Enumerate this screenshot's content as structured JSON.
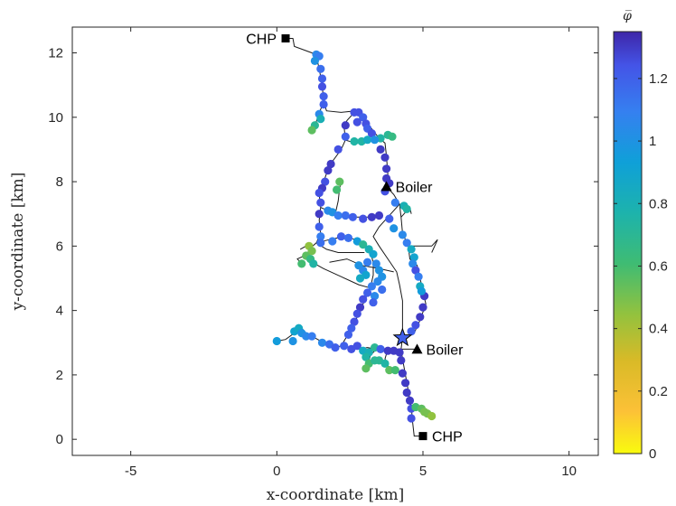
{
  "chart_data": {
    "type": "scatter",
    "title": "",
    "xlabel": "x-coordinate [km]",
    "ylabel": "y-coordinate [km]",
    "xlim": [
      -7,
      11
    ],
    "ylim": [
      -0.5,
      12.8
    ],
    "xticks": [
      -5,
      0,
      5,
      10
    ],
    "yticks": [
      0,
      2,
      4,
      6,
      8,
      10,
      12
    ],
    "grid": false,
    "colorbar": {
      "label": "φ̅",
      "range": [
        0,
        1.35
      ],
      "ticks": [
        0,
        0.2,
        0.4,
        0.6,
        0.8,
        1,
        1.2
      ],
      "colormap": "parula"
    },
    "annotations": [
      {
        "text": "CHP",
        "x": 0.3,
        "y": 12.45,
        "marker": "square"
      },
      {
        "text": "CHP",
        "x": 5.0,
        "y": 0.1,
        "marker": "square"
      },
      {
        "text": "Boiler",
        "x": 3.75,
        "y": 7.85,
        "marker": "triangle"
      },
      {
        "text": "Boiler",
        "x": 4.8,
        "y": 2.8,
        "marker": "triangle"
      }
    ],
    "star": {
      "x": 4.3,
      "y": 3.15,
      "value": 1.2
    },
    "network": [
      [
        [
          0.3,
          12.45
        ],
        [
          0.55,
          12.45
        ],
        [
          0.6,
          12.2
        ],
        [
          1.2,
          12.0
        ],
        [
          1.35,
          11.9
        ],
        [
          1.45,
          11.5
        ],
        [
          1.55,
          11.0
        ],
        [
          1.6,
          10.5
        ],
        [
          1.7,
          10.2
        ],
        [
          2.2,
          10.15
        ],
        [
          2.7,
          10.2
        ],
        [
          3.0,
          10.0
        ],
        [
          3.2,
          9.7
        ],
        [
          3.5,
          9.35
        ],
        [
          3.7,
          9.2
        ],
        [
          3.75,
          8.8
        ],
        [
          3.8,
          8.2
        ],
        [
          3.75,
          7.85
        ],
        [
          4.0,
          7.6
        ],
        [
          4.2,
          7.3
        ],
        [
          3.8,
          6.9
        ],
        [
          3.5,
          6.6
        ],
        [
          3.3,
          6.3
        ],
        [
          3.5,
          6.0
        ],
        [
          3.8,
          5.6
        ],
        [
          4.1,
          5.2
        ],
        [
          4.2,
          4.8
        ],
        [
          4.3,
          4.3
        ],
        [
          4.3,
          3.8
        ],
        [
          4.3,
          3.15
        ],
        [
          4.25,
          2.8
        ],
        [
          4.3,
          2.5
        ],
        [
          4.4,
          2.0
        ],
        [
          4.5,
          1.5
        ],
        [
          4.6,
          1.0
        ],
        [
          4.65,
          0.5
        ],
        [
          4.7,
          0.1
        ],
        [
          5.0,
          0.1
        ]
      ],
      [
        [
          1.6,
          10.5
        ],
        [
          1.4,
          10.0
        ],
        [
          1.25,
          9.6
        ]
      ],
      [
        [
          2.7,
          10.2
        ],
        [
          2.4,
          9.9
        ],
        [
          2.3,
          9.7
        ],
        [
          2.35,
          9.3
        ],
        [
          2.2,
          9.0
        ],
        [
          1.8,
          8.5
        ],
        [
          1.6,
          8.0
        ],
        [
          1.45,
          7.6
        ],
        [
          1.5,
          7.2
        ],
        [
          1.45,
          6.8
        ],
        [
          1.5,
          6.4
        ],
        [
          1.35,
          6.1
        ],
        [
          1.1,
          5.9
        ],
        [
          1.0,
          5.6
        ]
      ],
      [
        [
          2.3,
          9.3
        ],
        [
          2.7,
          9.2
        ],
        [
          3.1,
          9.3
        ],
        [
          3.7,
          9.4
        ],
        [
          4.0,
          9.45
        ]
      ],
      [
        [
          1.5,
          7.2
        ],
        [
          2.0,
          7.0
        ],
        [
          2.5,
          6.9
        ],
        [
          3.0,
          6.9
        ],
        [
          3.3,
          6.9
        ],
        [
          3.5,
          7.0
        ]
      ],
      [
        [
          2.0,
          7.0
        ],
        [
          2.1,
          7.4
        ],
        [
          2.15,
          7.8
        ],
        [
          2.2,
          8.0
        ]
      ],
      [
        [
          1.35,
          6.1
        ],
        [
          1.8,
          6.2
        ],
        [
          2.3,
          6.3
        ],
        [
          2.7,
          6.2
        ],
        [
          3.0,
          6.0
        ],
        [
          3.2,
          5.8
        ],
        [
          3.3,
          5.5
        ],
        [
          3.3,
          5.1
        ],
        [
          3.2,
          4.7
        ],
        [
          3.0,
          4.3
        ],
        [
          2.8,
          3.9
        ],
        [
          2.6,
          3.5
        ],
        [
          2.4,
          3.2
        ],
        [
          2.2,
          2.9
        ]
      ],
      [
        [
          1.35,
          6.1
        ],
        [
          1.7,
          5.9
        ],
        [
          2.1,
          5.8
        ],
        [
          2.6,
          5.8
        ],
        [
          3.0,
          5.8
        ]
      ],
      [
        [
          1.0,
          5.6
        ],
        [
          1.6,
          5.3
        ],
        [
          2.2,
          5.05
        ],
        [
          2.8,
          4.8
        ],
        [
          3.2,
          4.7
        ]
      ],
      [
        [
          1.8,
          5.5
        ],
        [
          2.4,
          5.6
        ],
        [
          2.9,
          5.4
        ],
        [
          3.5,
          5.3
        ],
        [
          4.0,
          5.2
        ]
      ],
      [
        [
          4.2,
          7.3
        ],
        [
          4.25,
          6.9
        ],
        [
          4.3,
          6.4
        ],
        [
          4.5,
          6.0
        ],
        [
          4.55,
          5.6
        ],
        [
          4.8,
          5.4
        ],
        [
          4.9,
          5.0
        ],
        [
          5.0,
          4.6
        ],
        [
          5.1,
          4.2
        ],
        [
          4.9,
          3.7
        ],
        [
          4.7,
          3.3
        ],
        [
          4.3,
          3.15
        ]
      ],
      [
        [
          4.5,
          6.0
        ],
        [
          4.9,
          6.0
        ],
        [
          5.3,
          6.0
        ],
        [
          5.5,
          6.2
        ],
        [
          5.3,
          5.8
        ]
      ],
      [
        [
          4.25,
          6.9
        ],
        [
          4.55,
          7.2
        ],
        [
          4.6,
          7.0
        ]
      ],
      [
        [
          0.0,
          3.05
        ],
        [
          0.3,
          3.1
        ],
        [
          0.6,
          3.3
        ],
        [
          0.8,
          3.5
        ],
        [
          1.0,
          3.3
        ],
        [
          1.4,
          3.1
        ],
        [
          1.7,
          2.95
        ],
        [
          2.0,
          2.85
        ],
        [
          2.2,
          2.9
        ],
        [
          2.5,
          2.85
        ],
        [
          2.8,
          2.8
        ],
        [
          3.1,
          2.85
        ],
        [
          3.4,
          2.8
        ],
        [
          3.8,
          2.8
        ],
        [
          4.25,
          2.8
        ]
      ],
      [
        [
          4.25,
          2.8
        ],
        [
          4.8,
          2.8
        ]
      ],
      [
        [
          3.4,
          2.8
        ],
        [
          3.2,
          2.6
        ],
        [
          3.1,
          2.25
        ]
      ],
      [
        [
          3.8,
          2.8
        ],
        [
          3.7,
          2.5
        ],
        [
          3.9,
          2.1
        ],
        [
          4.1,
          2.2
        ]
      ],
      [
        [
          4.6,
          1.0
        ],
        [
          4.85,
          0.95
        ],
        [
          5.1,
          0.85
        ],
        [
          5.3,
          0.75
        ]
      ],
      [
        [
          0.8,
          5.9
        ],
        [
          1.0,
          6.0
        ],
        [
          1.2,
          5.8
        ],
        [
          0.7,
          5.6
        ],
        [
          0.9,
          5.4
        ]
      ]
    ],
    "points": [
      [
        1.35,
        11.95,
        1.05
      ],
      [
        1.45,
        11.9,
        1.1
      ],
      [
        1.3,
        11.75,
        1.0
      ],
      [
        1.5,
        11.5,
        1.15
      ],
      [
        1.55,
        11.2,
        1.2
      ],
      [
        1.55,
        10.95,
        1.25
      ],
      [
        1.6,
        10.65,
        1.2
      ],
      [
        1.6,
        10.4,
        1.2
      ],
      [
        1.45,
        10.1,
        1.05
      ],
      [
        1.5,
        9.95,
        0.8
      ],
      [
        1.3,
        9.75,
        0.7
      ],
      [
        1.2,
        9.6,
        0.55
      ],
      [
        2.65,
        10.15,
        1.25
      ],
      [
        2.8,
        10.15,
        1.25
      ],
      [
        2.95,
        10.0,
        1.2
      ],
      [
        2.75,
        9.85,
        1.25
      ],
      [
        3.05,
        9.8,
        1.25
      ],
      [
        3.1,
        9.65,
        1.2
      ],
      [
        3.25,
        9.5,
        1.25
      ],
      [
        3.55,
        9.35,
        0.75
      ],
      [
        3.8,
        9.45,
        0.7
      ],
      [
        3.95,
        9.4,
        0.65
      ],
      [
        2.35,
        9.75,
        1.3
      ],
      [
        2.35,
        9.4,
        1.2
      ],
      [
        2.65,
        9.25,
        0.75
      ],
      [
        2.9,
        9.25,
        0.75
      ],
      [
        3.1,
        9.3,
        0.85
      ],
      [
        3.35,
        9.3,
        1.0
      ],
      [
        2.1,
        9.0,
        1.25
      ],
      [
        1.85,
        8.55,
        1.3
      ],
      [
        1.75,
        8.35,
        1.3
      ],
      [
        1.65,
        8.0,
        1.25
      ],
      [
        1.55,
        7.8,
        1.3
      ],
      [
        1.45,
        7.65,
        1.25
      ],
      [
        1.5,
        7.35,
        1.25
      ],
      [
        1.45,
        7.0,
        1.3
      ],
      [
        1.45,
        6.6,
        1.2
      ],
      [
        1.5,
        6.3,
        1.1
      ],
      [
        3.55,
        9.0,
        1.3
      ],
      [
        3.7,
        8.75,
        1.3
      ],
      [
        3.75,
        8.4,
        1.3
      ],
      [
        3.75,
        8.1,
        1.3
      ],
      [
        3.85,
        7.95,
        1.3
      ],
      [
        3.7,
        7.7,
        1.25
      ],
      [
        1.75,
        7.1,
        1.05
      ],
      [
        1.9,
        7.05,
        1.0
      ],
      [
        2.1,
        6.95,
        1.1
      ],
      [
        2.35,
        6.95,
        1.15
      ],
      [
        2.6,
        6.9,
        1.2
      ],
      [
        2.95,
        6.85,
        1.25
      ],
      [
        3.25,
        6.9,
        1.3
      ],
      [
        3.5,
        6.95,
        1.3
      ],
      [
        2.15,
        8.0,
        0.55
      ],
      [
        2.05,
        7.75,
        0.6
      ],
      [
        4.05,
        7.35,
        1.1
      ],
      [
        4.35,
        7.25,
        0.8
      ],
      [
        4.45,
        7.15,
        0.75
      ],
      [
        3.85,
        6.85,
        1.2
      ],
      [
        4.0,
        6.55,
        1.0
      ],
      [
        1.1,
        6.0,
        0.45
      ],
      [
        1.2,
        5.85,
        0.5
      ],
      [
        1.0,
        5.7,
        0.55
      ],
      [
        1.15,
        5.6,
        0.65
      ],
      [
        1.25,
        5.45,
        0.75
      ],
      [
        0.85,
        5.45,
        0.6
      ],
      [
        1.5,
        6.1,
        1.15
      ],
      [
        1.9,
        6.15,
        1.1
      ],
      [
        2.2,
        6.3,
        1.2
      ],
      [
        2.45,
        6.25,
        1.15
      ],
      [
        2.75,
        6.15,
        0.95
      ],
      [
        2.95,
        6.05,
        0.7
      ],
      [
        3.15,
        5.9,
        0.8
      ],
      [
        3.3,
        5.75,
        0.9
      ],
      [
        3.1,
        5.5,
        1.1
      ],
      [
        3.4,
        5.45,
        1.05
      ],
      [
        3.5,
        5.25,
        1.0
      ],
      [
        3.6,
        5.05,
        1.0
      ],
      [
        3.45,
        4.9,
        1.05
      ],
      [
        3.25,
        4.75,
        1.1
      ],
      [
        3.1,
        4.55,
        1.2
      ],
      [
        2.95,
        4.35,
        1.25
      ],
      [
        2.85,
        4.1,
        1.3
      ],
      [
        2.75,
        3.9,
        1.25
      ],
      [
        2.65,
        3.65,
        1.25
      ],
      [
        2.55,
        3.45,
        1.2
      ],
      [
        2.45,
        3.25,
        1.2
      ],
      [
        2.8,
        5.4,
        1.0
      ],
      [
        2.95,
        5.25,
        1.05
      ],
      [
        3.05,
        5.1,
        0.9
      ],
      [
        2.85,
        5.0,
        0.85
      ],
      [
        3.6,
        4.65,
        1.15
      ],
      [
        3.35,
        4.45,
        1.05
      ],
      [
        3.3,
        4.25,
        1.2
      ],
      [
        4.3,
        6.35,
        1.05
      ],
      [
        4.45,
        6.1,
        1.1
      ],
      [
        4.6,
        5.9,
        0.85
      ],
      [
        4.7,
        5.65,
        0.9
      ],
      [
        4.65,
        5.45,
        1.05
      ],
      [
        4.75,
        5.25,
        1.25
      ],
      [
        4.85,
        5.05,
        1.1
      ],
      [
        4.9,
        4.75,
        0.85
      ],
      [
        5.05,
        4.45,
        1.3
      ],
      [
        5.0,
        4.1,
        1.3
      ],
      [
        4.9,
        3.8,
        1.3
      ],
      [
        4.75,
        3.55,
        1.25
      ],
      [
        4.6,
        3.35,
        1.2
      ],
      [
        4.95,
        4.6,
        0.95
      ],
      [
        0.0,
        3.05,
        0.95
      ],
      [
        0.6,
        3.35,
        0.9
      ],
      [
        0.75,
        3.45,
        0.85
      ],
      [
        0.55,
        3.05,
        1.0
      ],
      [
        0.85,
        3.3,
        1.0
      ],
      [
        1.0,
        3.2,
        1.05
      ],
      [
        1.2,
        3.2,
        1.1
      ],
      [
        1.55,
        3.0,
        1.05
      ],
      [
        1.8,
        2.95,
        1.15
      ],
      [
        2.0,
        2.85,
        1.2
      ],
      [
        2.3,
        2.9,
        1.2
      ],
      [
        2.55,
        2.8,
        1.25
      ],
      [
        2.75,
        2.9,
        1.25
      ],
      [
        2.95,
        2.75,
        0.85
      ],
      [
        3.15,
        2.7,
        0.8
      ],
      [
        3.35,
        2.85,
        0.7
      ],
      [
        3.55,
        2.8,
        1.2
      ],
      [
        3.8,
        2.75,
        1.3
      ],
      [
        4.0,
        2.75,
        1.3
      ],
      [
        4.2,
        2.7,
        1.3
      ],
      [
        3.05,
        2.55,
        0.75
      ],
      [
        3.15,
        2.35,
        0.6
      ],
      [
        3.05,
        2.2,
        0.55
      ],
      [
        3.5,
        2.45,
        0.7
      ],
      [
        3.7,
        2.35,
        0.75
      ],
      [
        3.85,
        2.15,
        0.55
      ],
      [
        4.05,
        2.15,
        0.6
      ],
      [
        3.35,
        2.45,
        0.7
      ],
      [
        4.25,
        2.45,
        1.3
      ],
      [
        4.3,
        2.05,
        1.3
      ],
      [
        4.4,
        1.75,
        1.3
      ],
      [
        4.45,
        1.45,
        1.3
      ],
      [
        4.55,
        1.2,
        1.3
      ],
      [
        4.6,
        0.95,
        1.25
      ],
      [
        4.6,
        0.65,
        1.25
      ],
      [
        4.75,
        1.0,
        0.6
      ],
      [
        4.95,
        0.95,
        0.55
      ],
      [
        5.05,
        0.85,
        0.5
      ],
      [
        5.15,
        0.8,
        0.5
      ],
      [
        5.3,
        0.72,
        0.45
      ]
    ]
  }
}
